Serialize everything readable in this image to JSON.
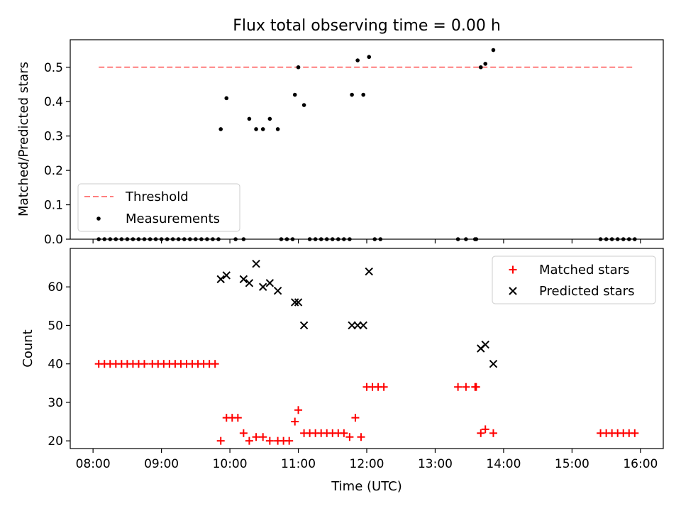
{
  "chart_data": [
    {
      "type": "scatter",
      "title": "Flux total observing time = 0.00 h",
      "xlabel": "",
      "ylabel": "Matched/Predicted stars",
      "ylim": [
        0,
        0.58
      ],
      "yticks": [
        0.0,
        0.1,
        0.2,
        0.3,
        0.4,
        0.5
      ],
      "ytick_labels": [
        "0.0",
        "0.1",
        "0.2",
        "0.3",
        "0.4",
        "0.5"
      ],
      "xlim": [
        "07:40",
        "16:20"
      ],
      "legend": {
        "position": "lower-left",
        "entries": [
          "Threshold",
          "Measurements"
        ]
      },
      "grid": false,
      "series": [
        {
          "name": "Threshold",
          "kind": "line",
          "style": "dashed",
          "color": "#ff7f7f",
          "x": [
            "08:05",
            "15:55"
          ],
          "y": [
            0.5,
            0.5
          ]
        },
        {
          "name": "Measurements",
          "kind": "scatter",
          "color": "#000000",
          "x": [
            "08:05",
            "08:10",
            "08:15",
            "08:20",
            "08:25",
            "08:30",
            "08:35",
            "08:40",
            "08:45",
            "08:50",
            "08:55",
            "09:00",
            "09:05",
            "09:10",
            "09:15",
            "09:20",
            "09:25",
            "09:30",
            "09:35",
            "09:40",
            "09:45",
            "09:50",
            "09:52",
            "09:57",
            "10:05",
            "10:12",
            "10:17",
            "10:23",
            "10:29",
            "10:35",
            "10:42",
            "10:45",
            "10:50",
            "10:55",
            "10:57",
            "11:00",
            "11:05",
            "11:10",
            "11:15",
            "11:20",
            "11:25",
            "11:30",
            "11:35",
            "11:40",
            "11:45",
            "11:47",
            "11:52",
            "11:57",
            "12:02",
            "12:07",
            "12:12",
            "13:20",
            "13:27",
            "13:35",
            "13:36",
            "13:40",
            "13:44",
            "13:51",
            "15:25",
            "15:30",
            "15:35",
            "15:40",
            "15:45",
            "15:50",
            "15:55"
          ],
          "y": [
            0,
            0,
            0,
            0,
            0,
            0,
            0,
            0,
            0,
            0,
            0,
            0,
            0,
            0,
            0,
            0,
            0,
            0,
            0,
            0,
            0,
            0,
            0.32,
            0.41,
            0,
            0,
            0.35,
            0.32,
            0.32,
            0.35,
            0.32,
            0,
            0,
            0,
            0.42,
            0.5,
            0.39,
            0,
            0,
            0,
            0,
            0,
            0,
            0,
            0,
            0.42,
            0.52,
            0.42,
            0.53,
            0,
            0,
            0,
            0,
            0,
            0,
            0.5,
            0.51,
            0.55,
            0,
            0,
            0,
            0,
            0,
            0,
            0
          ]
        }
      ]
    },
    {
      "type": "scatter",
      "title": "",
      "xlabel": "Time (UTC)",
      "ylabel": "Count",
      "ylim": [
        18,
        70
      ],
      "yticks": [
        20,
        30,
        40,
        50,
        60
      ],
      "ytick_labels": [
        "20",
        "30",
        "40",
        "50",
        "60"
      ],
      "xlim": [
        "07:40",
        "16:20"
      ],
      "xticks": [
        "08:00",
        "09:00",
        "10:00",
        "11:00",
        "12:00",
        "13:00",
        "14:00",
        "15:00",
        "16:00"
      ],
      "xtick_labels": [
        "08:00",
        "09:00",
        "10:00",
        "11:00",
        "12:00",
        "13:00",
        "14:00",
        "15:00",
        "16:00"
      ],
      "legend": {
        "position": "upper-right",
        "entries": [
          "Matched stars",
          "Predicted stars"
        ]
      },
      "grid": false,
      "series": [
        {
          "name": "Matched stars",
          "marker": "+",
          "color": "#ff0000",
          "x": [
            "08:05",
            "08:10",
            "08:15",
            "08:20",
            "08:25",
            "08:30",
            "08:35",
            "08:40",
            "08:45",
            "08:52",
            "08:57",
            "09:02",
            "09:07",
            "09:12",
            "09:17",
            "09:22",
            "09:27",
            "09:32",
            "09:37",
            "09:42",
            "09:47",
            "09:52",
            "09:57",
            "10:02",
            "10:07",
            "10:12",
            "10:17",
            "10:23",
            "10:29",
            "10:35",
            "10:42",
            "10:47",
            "10:52",
            "10:57",
            "11:00",
            "11:05",
            "11:10",
            "11:15",
            "11:20",
            "11:25",
            "11:30",
            "11:35",
            "11:40",
            "11:45",
            "11:50",
            "11:55",
            "12:00",
            "12:05",
            "12:10",
            "12:15",
            "13:20",
            "13:27",
            "13:35",
            "13:36",
            "13:40",
            "13:44",
            "13:51",
            "15:25",
            "15:30",
            "15:35",
            "15:40",
            "15:45",
            "15:50",
            "15:55"
          ],
          "y": [
            40,
            40,
            40,
            40,
            40,
            40,
            40,
            40,
            40,
            40,
            40,
            40,
            40,
            40,
            40,
            40,
            40,
            40,
            40,
            40,
            40,
            20,
            26,
            26,
            26,
            22,
            20,
            21,
            21,
            20,
            20,
            20,
            20,
            25,
            28,
            22,
            22,
            22,
            22,
            22,
            22,
            22,
            22,
            21,
            26,
            21,
            34,
            34,
            34,
            34,
            34,
            34,
            34,
            34,
            22,
            23,
            22,
            22,
            22,
            22,
            22,
            22,
            22,
            22
          ]
        },
        {
          "name": "Predicted stars",
          "marker": "x",
          "color": "#000000",
          "x": [
            "09:52",
            "09:57",
            "10:12",
            "10:17",
            "10:23",
            "10:29",
            "10:35",
            "10:42",
            "10:57",
            "11:00",
            "11:05",
            "11:47",
            "11:52",
            "11:57",
            "12:02",
            "13:40",
            "13:44",
            "13:51"
          ],
          "y": [
            62,
            63,
            62,
            61,
            66,
            60,
            61,
            59,
            56,
            56,
            50,
            50,
            50,
            50,
            64,
            44,
            45,
            40
          ]
        }
      ]
    }
  ]
}
